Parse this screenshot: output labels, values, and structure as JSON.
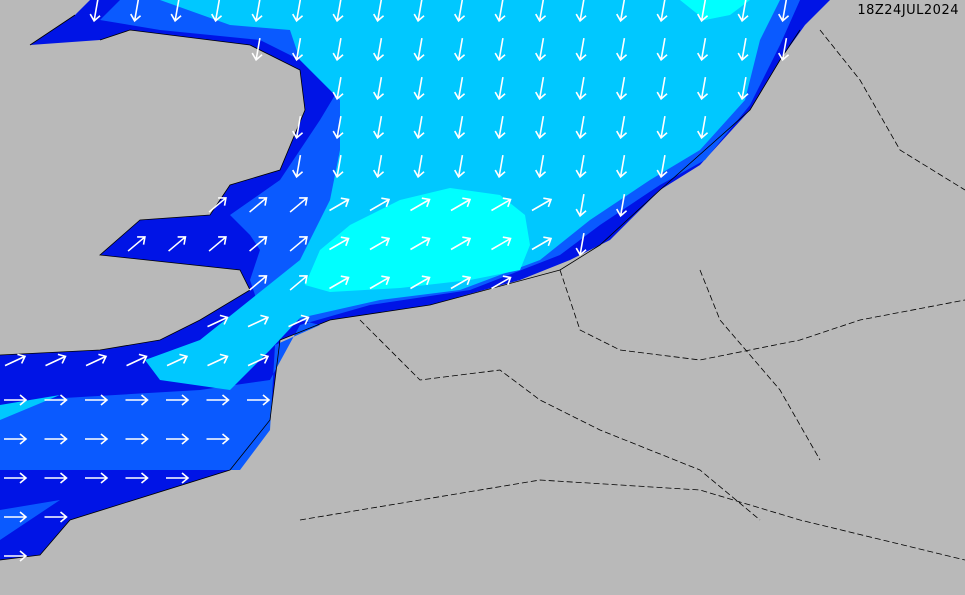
{
  "timestamp": "18Z24JUL2024",
  "colors": {
    "land": "#b9b9b9",
    "sea_level1": "#0014e6",
    "sea_level2": "#0a5aff",
    "sea_level3": "#00c8ff",
    "sea_level4": "#00ffff",
    "arrow": "#ffffff",
    "border": "#000000"
  },
  "legend_icon": "wind-direction-arrow-icon"
}
